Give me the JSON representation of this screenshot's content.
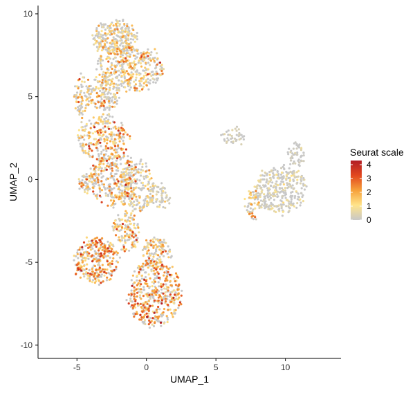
{
  "chart_data": {
    "type": "scatter",
    "title": "",
    "xlabel": "UMAP_1",
    "ylabel": "UMAP_2",
    "xlim": [
      -7.8,
      14
    ],
    "ylim": [
      -10.8,
      10.5
    ],
    "x_ticks": [
      -5,
      0,
      5,
      10
    ],
    "y_ticks": [
      -10,
      -5,
      0,
      5,
      10
    ],
    "grid": false,
    "legend": {
      "title": "Seurat scale",
      "placement": "right",
      "ticks": [
        4,
        3,
        2,
        1,
        0
      ],
      "range": [
        0,
        4.3
      ],
      "colors": [
        "#c8c8c8",
        "#ffe48a",
        "#f6a13a",
        "#e2471f",
        "#b11d24"
      ]
    },
    "series": [
      {
        "clusters": [
          {
            "cx": -2.2,
            "cy": 8.6,
            "rx": 1.7,
            "ry": 1.0,
            "n": 260,
            "mean": 0.9,
            "spread": 1.0
          },
          {
            "cx": -1.2,
            "cy": 6.7,
            "rx": 2.4,
            "ry": 1.4,
            "n": 380,
            "mean": 1.1,
            "spread": 1.1
          },
          {
            "cx": -3.1,
            "cy": 5.2,
            "rx": 1.3,
            "ry": 1.0,
            "n": 160,
            "mean": 1.0,
            "spread": 1.0
          },
          {
            "cx": -4.6,
            "cy": 5.0,
            "rx": 0.5,
            "ry": 1.3,
            "n": 70,
            "mean": 1.2,
            "spread": 1.0
          },
          {
            "cx": -3.1,
            "cy": 2.5,
            "rx": 1.9,
            "ry": 1.4,
            "n": 260,
            "mean": 1.5,
            "spread": 1.0
          },
          {
            "cx": -2.3,
            "cy": 0.0,
            "rx": 1.7,
            "ry": 1.7,
            "n": 320,
            "mean": 1.6,
            "spread": 1.0
          },
          {
            "cx": -0.6,
            "cy": -0.4,
            "rx": 1.2,
            "ry": 1.6,
            "n": 180,
            "mean": 0.8,
            "spread": 0.9
          },
          {
            "cx": 0.9,
            "cy": -1.0,
            "rx": 0.8,
            "ry": 0.8,
            "n": 60,
            "mean": 0.4,
            "spread": 0.6
          },
          {
            "cx": -4.4,
            "cy": -0.2,
            "rx": 0.5,
            "ry": 0.6,
            "n": 50,
            "mean": 1.3,
            "spread": 0.9
          },
          {
            "cx": -3.6,
            "cy": -4.9,
            "rx": 1.6,
            "ry": 1.4,
            "n": 300,
            "mean": 2.1,
            "spread": 0.9
          },
          {
            "cx": -1.5,
            "cy": -3.2,
            "rx": 1.0,
            "ry": 1.2,
            "n": 130,
            "mean": 1.4,
            "spread": 1.0
          },
          {
            "cx": 0.6,
            "cy": -6.9,
            "rx": 1.9,
            "ry": 2.0,
            "n": 440,
            "mean": 2.0,
            "spread": 1.0
          },
          {
            "cx": 0.7,
            "cy": -4.5,
            "rx": 1.0,
            "ry": 1.0,
            "n": 120,
            "mean": 1.4,
            "spread": 1.0
          },
          {
            "cx": 6.2,
            "cy": 2.6,
            "rx": 0.8,
            "ry": 0.5,
            "n": 40,
            "mean": 0.1,
            "spread": 0.3
          },
          {
            "cx": 9.7,
            "cy": -0.6,
            "rx": 1.9,
            "ry": 1.4,
            "n": 320,
            "mean": 0.2,
            "spread": 0.5
          },
          {
            "cx": 10.8,
            "cy": 1.5,
            "rx": 0.6,
            "ry": 0.8,
            "n": 50,
            "mean": 0.1,
            "spread": 0.3
          },
          {
            "cx": 7.7,
            "cy": -1.5,
            "rx": 0.5,
            "ry": 0.9,
            "n": 70,
            "mean": 1.0,
            "spread": 0.9
          }
        ]
      }
    ]
  }
}
